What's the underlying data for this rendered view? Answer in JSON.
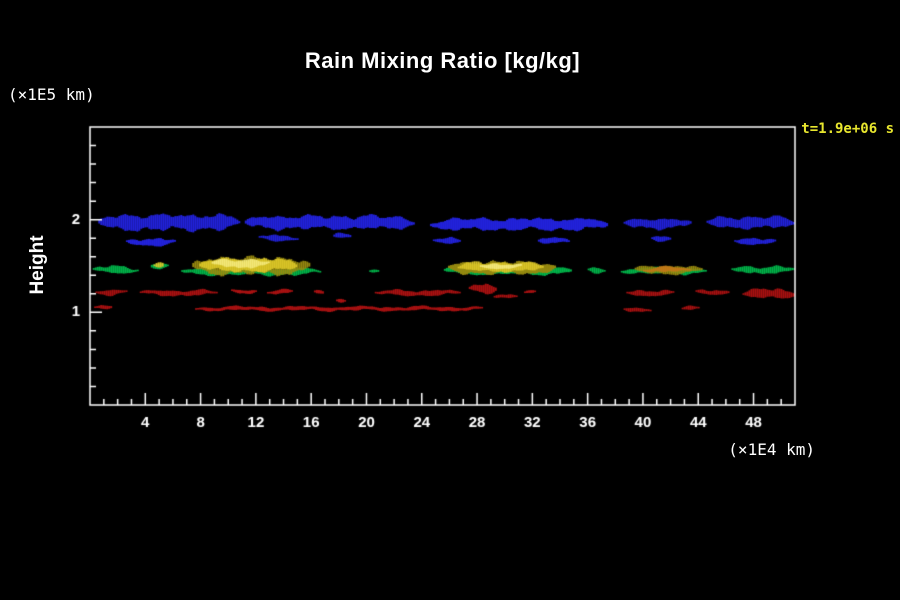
{
  "chart_data": {
    "type": "heatmap",
    "title": "Rain Mixing Ratio [kg/kg]",
    "time_annotation": "t=1.9e+06 s",
    "ylabel": "Height",
    "ylabel_units": "(×1E5 km)",
    "xlabel": "",
    "xlabel_units": "(×1E4 km)",
    "xlim": [
      0,
      51
    ],
    "ylim": [
      0,
      3
    ],
    "xticks_major": [
      4,
      8,
      12,
      16,
      20,
      24,
      28,
      32,
      36,
      40,
      44,
      48
    ],
    "xtick_minor_step": 1,
    "yticks_major": [
      1,
      2
    ],
    "ytick_minor_step": 0.2,
    "background_color": "#000000",
    "axis_color": "#ffffff",
    "time_label_color": "#e8e62e",
    "series": [
      {
        "name": "level-blue",
        "color": "#2222dd",
        "blobs": [
          [
            0.6,
            10.8,
            1.97,
            0.2
          ],
          [
            2.6,
            6.2,
            1.76,
            0.1
          ],
          [
            11.2,
            23.4,
            1.97,
            0.17
          ],
          [
            12.2,
            15.0,
            1.8,
            0.08
          ],
          [
            17.6,
            18.9,
            1.82,
            0.07
          ],
          [
            24.6,
            37.4,
            1.95,
            0.15
          ],
          [
            24.8,
            26.8,
            1.78,
            0.08
          ],
          [
            32.4,
            34.6,
            1.77,
            0.09
          ],
          [
            38.6,
            43.4,
            1.96,
            0.13
          ],
          [
            40.6,
            42.0,
            1.8,
            0.07
          ],
          [
            44.6,
            51.0,
            1.97,
            0.15
          ],
          [
            46.6,
            49.6,
            1.77,
            0.09
          ]
        ]
      },
      {
        "name": "level-dark-red",
        "color": "#aa1111",
        "blobs": [
          [
            0.4,
            2.6,
            1.22,
            0.07
          ],
          [
            3.6,
            9.2,
            1.21,
            0.07
          ],
          [
            10.2,
            12.0,
            1.23,
            0.06
          ],
          [
            12.8,
            14.6,
            1.22,
            0.06
          ],
          [
            16.2,
            16.9,
            1.22,
            0.05
          ],
          [
            17.8,
            18.4,
            1.13,
            0.05
          ],
          [
            20.6,
            26.8,
            1.21,
            0.07
          ],
          [
            27.4,
            29.4,
            1.26,
            0.13
          ],
          [
            29.2,
            30.8,
            1.18,
            0.06
          ],
          [
            31.4,
            32.2,
            1.22,
            0.05
          ],
          [
            38.8,
            42.2,
            1.21,
            0.08
          ],
          [
            43.8,
            46.2,
            1.22,
            0.07
          ],
          [
            47.2,
            51.0,
            1.2,
            0.13
          ],
          [
            0.3,
            1.6,
            1.05,
            0.06
          ],
          [
            7.6,
            28.4,
            1.04,
            0.05
          ],
          [
            38.6,
            40.6,
            1.03,
            0.06
          ],
          [
            42.8,
            44.0,
            1.04,
            0.05
          ]
        ]
      },
      {
        "name": "level-green",
        "color": "#00b44a",
        "blobs": [
          [
            0.2,
            3.4,
            1.46,
            0.1
          ],
          [
            4.4,
            5.6,
            1.5,
            0.09
          ],
          [
            6.6,
            16.6,
            1.44,
            0.09
          ],
          [
            20.2,
            20.9,
            1.44,
            0.05
          ],
          [
            25.6,
            34.8,
            1.45,
            0.1
          ],
          [
            36.0,
            37.2,
            1.45,
            0.07
          ],
          [
            38.4,
            44.6,
            1.45,
            0.08
          ],
          [
            46.4,
            51.0,
            1.46,
            0.09
          ]
        ]
      },
      {
        "name": "level-olive",
        "color": "#96880f",
        "blobs": [
          [
            7.4,
            15.8,
            1.5,
            0.22
          ],
          [
            25.9,
            33.6,
            1.48,
            0.16
          ],
          [
            39.4,
            44.2,
            1.46,
            0.11
          ]
        ]
      },
      {
        "name": "level-yellow",
        "color": "#d9c428",
        "blobs": [
          [
            7.9,
            14.9,
            1.51,
            0.17
          ],
          [
            26.6,
            32.8,
            1.49,
            0.12
          ],
          [
            4.6,
            5.3,
            1.52,
            0.07
          ]
        ]
      },
      {
        "name": "level-orange",
        "color": "#c07818",
        "blobs": [
          [
            40.0,
            43.4,
            1.46,
            0.07
          ]
        ]
      },
      {
        "name": "level-pale-yellow",
        "color": "#f3e87a",
        "blobs": [
          [
            8.8,
            12.9,
            1.53,
            0.11
          ],
          [
            28.2,
            31.2,
            1.5,
            0.07
          ]
        ]
      }
    ]
  }
}
